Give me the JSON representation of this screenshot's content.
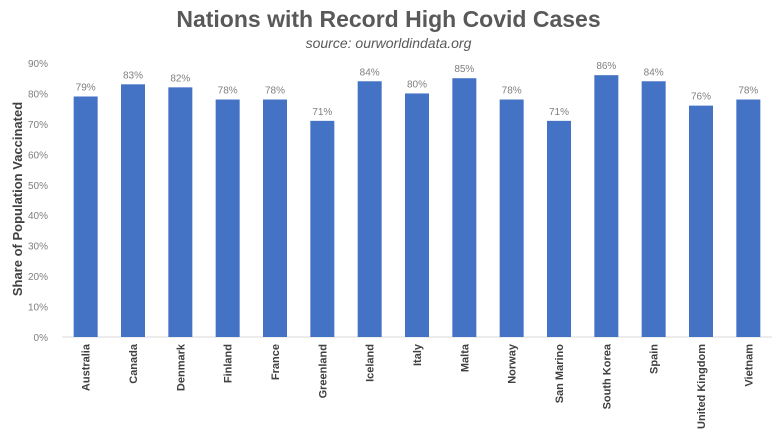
{
  "chart_data": {
    "type": "bar",
    "title": "Nations with Record High Covid Cases",
    "subtitle": "source: ourworldindata.org",
    "xlabel": "",
    "ylabel": "Share of Population Vaccinated",
    "ylim": [
      0,
      90
    ],
    "yticks": [
      "0%",
      "10%",
      "20%",
      "30%",
      "40%",
      "50%",
      "60%",
      "70%",
      "80%",
      "90%"
    ],
    "grid": false,
    "legend": "none",
    "categories": [
      "Australia",
      "Canada",
      "Denmark",
      "Finland",
      "France",
      "Greenland",
      "Iceland",
      "Italy",
      "Malta",
      "Norway",
      "San Marino",
      "South Korea",
      "Spain",
      "United Kingdom",
      "Vietnam"
    ],
    "values": [
      79,
      83,
      82,
      78,
      78,
      71,
      84,
      80,
      85,
      78,
      71,
      86,
      84,
      76,
      78
    ],
    "data_labels": [
      "79%",
      "83%",
      "82%",
      "78%",
      "78%",
      "71%",
      "84%",
      "80%",
      "85%",
      "78%",
      "71%",
      "86%",
      "84%",
      "76%",
      "78%"
    ],
    "bar_color": "#4472c4"
  }
}
